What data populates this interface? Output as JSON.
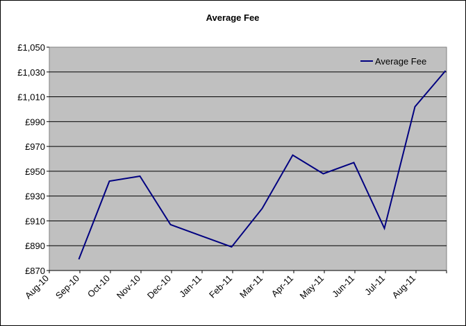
{
  "chart_data": {
    "type": "line",
    "title": "Average Fee",
    "xlabel": "",
    "ylabel": "",
    "categories": [
      "Aug-10",
      "Sep-10",
      "Oct-10",
      "Nov-10",
      "Dec-10",
      "Jan-11",
      "Feb-11",
      "Mar-11",
      "Apr-11",
      "May-11",
      "Jun-11",
      "Jul-11",
      "Aug-11"
    ],
    "y_ticks": [
      "£870",
      "£890",
      "£910",
      "£930",
      "£950",
      "£970",
      "£990",
      "£1,010",
      "£1,030",
      "£1,050"
    ],
    "ylim": [
      870,
      1050
    ],
    "grid": true,
    "legend": "top-right",
    "colors": {
      "line": "#000080",
      "plot_bg": "#C0C0C0",
      "grid": "#000000"
    },
    "series": [
      {
        "name": "Average Fee",
        "points": [
          {
            "x": "2010-08-15",
            "y": 879
          },
          {
            "x": "2010-09-15",
            "y": 942
          },
          {
            "x": "2010-10-15",
            "y": 946
          },
          {
            "x": "2010-11-15",
            "y": 907
          },
          {
            "x": "2010-12-15",
            "y": 898
          },
          {
            "x": "2011-01-15",
            "y": 889
          },
          {
            "x": "2011-02-15",
            "y": 920
          },
          {
            "x": "2011-03-15",
            "y": 963
          },
          {
            "x": "2011-04-15",
            "y": 948
          },
          {
            "x": "2011-05-15",
            "y": 957
          },
          {
            "x": "2011-06-15",
            "y": 904
          },
          {
            "x": "2011-07-15",
            "y": 1002
          },
          {
            "x": "2011-08-15",
            "y": 1031
          }
        ]
      }
    ]
  }
}
